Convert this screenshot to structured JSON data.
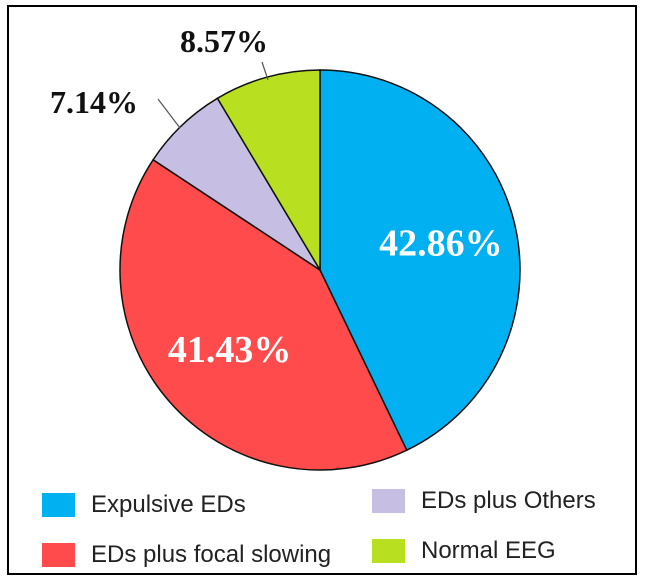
{
  "chart_data": {
    "type": "pie",
    "slices": [
      {
        "label": "Expulsive EDs",
        "value": 42.86,
        "value_label": "42.86%",
        "color": "#00B0F0"
      },
      {
        "label": "EDs plus focal slowing",
        "value": 41.43,
        "value_label": "41.43%",
        "color": "#FF4B4B"
      },
      {
        "label": "EDs plus Others",
        "value": 7.14,
        "value_label": "7.14%",
        "color": "#C7BFE3"
      },
      {
        "label": "Normal EEG",
        "value": 8.57,
        "value_label": "8.57%",
        "color": "#B8E020"
      }
    ],
    "start_angle_deg": 0,
    "direction": "clockwise",
    "legend_position": "bottom"
  }
}
